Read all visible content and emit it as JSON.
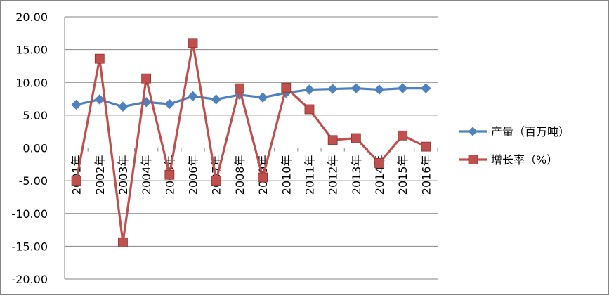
{
  "chart_data": {
    "type": "line",
    "title": "",
    "xlabel": "",
    "ylabel": "",
    "ylim": [
      -20,
      20
    ],
    "ytick_step": 5,
    "ytick_labels": [
      "20.00",
      "15.00",
      "10.00",
      "5.00",
      "0.00",
      "-5.00",
      "-10.00",
      "-15.00",
      "-20.00"
    ],
    "grid": true,
    "legend_position": "right",
    "categories": [
      "2001年",
      "2002年",
      "2003年",
      "2004年",
      "2005年",
      "2006年",
      "2007年",
      "2008年",
      "2009年",
      "2010年",
      "2011年",
      "2012年",
      "2013年",
      "2014年",
      "2015年",
      "2016年"
    ],
    "series": [
      {
        "name": "产量（百万吨）",
        "color": "#4f81bd",
        "marker": "diamond",
        "values": [
          6.6,
          7.4,
          6.3,
          7.0,
          6.7,
          7.9,
          7.4,
          8.1,
          7.7,
          8.4,
          8.9,
          9.0,
          9.1,
          8.9,
          9.1,
          9.1
        ]
      },
      {
        "name": "增长率（%）",
        "color": "#c0504d",
        "marker": "square",
        "values": [
          -5.0,
          13.6,
          -14.4,
          10.6,
          -4.1,
          16.0,
          -5.0,
          9.1,
          -4.5,
          9.2,
          5.9,
          1.2,
          1.5,
          -2.3,
          1.9,
          0.2
        ]
      }
    ]
  }
}
